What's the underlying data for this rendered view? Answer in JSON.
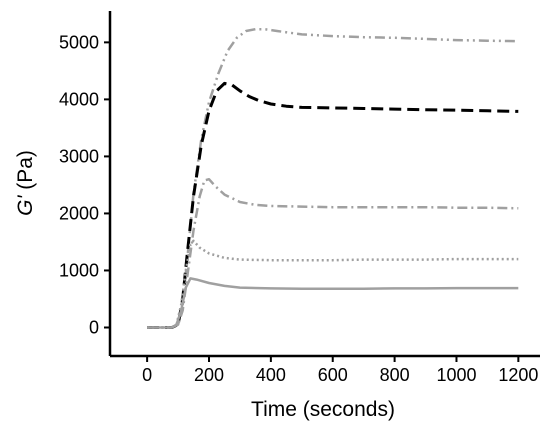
{
  "chart_data": {
    "type": "line",
    "xlabel": "Time (seconds)",
    "ylabel_italic": "G'",
    "ylabel_rest": " (Pa)",
    "xlim": [
      -120,
      1270
    ],
    "ylim": [
      -500,
      5550
    ],
    "x_ticks": [
      0,
      200,
      400,
      600,
      800,
      1000,
      1200
    ],
    "y_ticks": [
      0,
      1000,
      2000,
      3000,
      4000,
      5000
    ],
    "grid": false,
    "legend": "none",
    "series": [
      {
        "color": "#a0a0a0",
        "style": "dashdotdot",
        "x": [
          0,
          80,
          100,
          115,
          130,
          150,
          175,
          200,
          230,
          260,
          290,
          320,
          350,
          380,
          420,
          500,
          600,
          700,
          800,
          900,
          1000,
          1100,
          1200
        ],
        "y": [
          0,
          0,
          50,
          400,
          1200,
          2350,
          3300,
          3950,
          4450,
          4850,
          5080,
          5200,
          5230,
          5230,
          5200,
          5140,
          5110,
          5090,
          5080,
          5060,
          5040,
          5030,
          5020
        ]
      },
      {
        "color": "#000000",
        "style": "dashed",
        "x": [
          0,
          80,
          100,
          115,
          130,
          150,
          175,
          200,
          225,
          250,
          275,
          300,
          330,
          360,
          400,
          450,
          500,
          600,
          700,
          800,
          900,
          1000,
          1100,
          1200
        ],
        "y": [
          0,
          0,
          50,
          500,
          1300,
          2300,
          3200,
          3800,
          4150,
          4280,
          4250,
          4150,
          4050,
          3980,
          3920,
          3880,
          3860,
          3850,
          3840,
          3830,
          3820,
          3810,
          3800,
          3790
        ]
      },
      {
        "color": "#a0a0a0",
        "style": "dashdot",
        "x": [
          0,
          80,
          100,
          115,
          130,
          150,
          170,
          185,
          200,
          220,
          250,
          300,
          350,
          400,
          500,
          600,
          700,
          800,
          900,
          1000,
          1100,
          1200
        ],
        "y": [
          0,
          0,
          50,
          300,
          900,
          1700,
          2300,
          2580,
          2600,
          2480,
          2330,
          2200,
          2150,
          2130,
          2120,
          2110,
          2110,
          2110,
          2110,
          2100,
          2100,
          2090
        ]
      },
      {
        "color": "#a0a0a0",
        "style": "dotted",
        "x": [
          0,
          80,
          95,
          110,
          125,
          140,
          150,
          170,
          200,
          250,
          300,
          400,
          500,
          600,
          700,
          800,
          900,
          1000,
          1100,
          1200
        ],
        "y": [
          0,
          0,
          50,
          400,
          1000,
          1450,
          1520,
          1400,
          1300,
          1220,
          1190,
          1180,
          1180,
          1180,
          1190,
          1190,
          1190,
          1200,
          1200,
          1200
        ]
      },
      {
        "color": "#a0a0a0",
        "style": "solid",
        "x": [
          0,
          80,
          95,
          110,
          125,
          140,
          160,
          200,
          250,
          300,
          400,
          500,
          600,
          700,
          800,
          900,
          1000,
          1100,
          1200
        ],
        "y": [
          0,
          0,
          50,
          300,
          700,
          860,
          840,
          780,
          730,
          700,
          685,
          680,
          680,
          680,
          685,
          685,
          690,
          690,
          690
        ]
      }
    ]
  }
}
